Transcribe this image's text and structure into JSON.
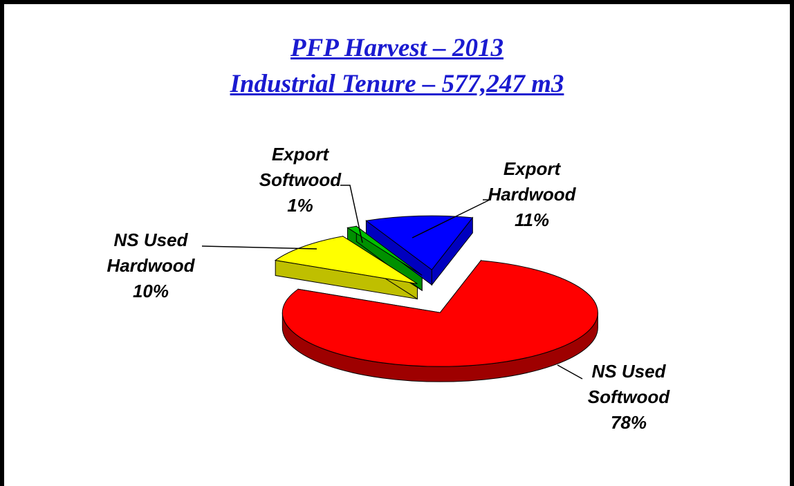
{
  "chart_data": {
    "type": "pie",
    "title": "PFP Harvest – 2013",
    "subtitle": "Industrial Tenure – 577,247 m3",
    "categories": [
      "NS Used Softwood",
      "NS Used Hardwood",
      "Export Softwood",
      "Export Hardwood"
    ],
    "values": [
      78,
      10,
      1,
      11
    ],
    "value_labels": [
      "78%",
      "10%",
      "1%",
      "11%"
    ],
    "colors": [
      "#ff0000",
      "#ffff00",
      "#00c000",
      "#0000ff"
    ]
  }
}
